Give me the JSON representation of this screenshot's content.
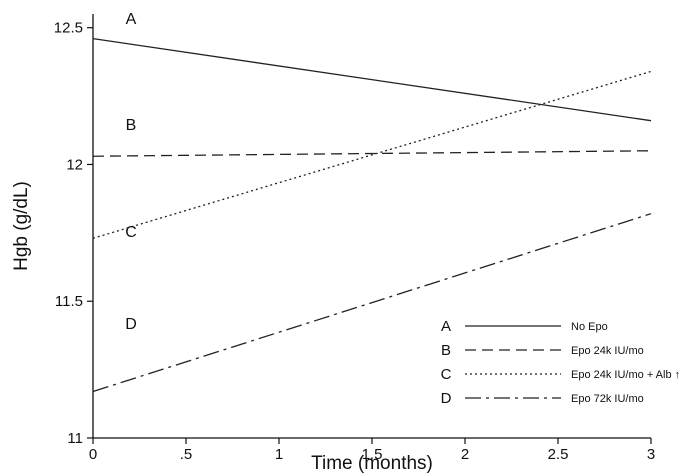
{
  "chart_data": {
    "type": "line",
    "title": "",
    "xlabel": "Time (months)",
    "ylabel": "Hgb (g/dL)",
    "xlim": [
      0,
      3
    ],
    "ylim": [
      11,
      12.55
    ],
    "xticks": [
      0,
      0.5,
      1,
      1.5,
      2,
      2.5,
      3
    ],
    "xtick_labels": [
      "0",
      ".5",
      "1",
      "1.5",
      "2",
      "2.5",
      "3"
    ],
    "yticks": [
      11,
      11.5,
      12,
      12.5
    ],
    "ytick_labels": [
      "11",
      "11.5",
      "12",
      "12.5"
    ],
    "grid": false,
    "legend_position": "bottom-right",
    "series": [
      {
        "letter": "A",
        "name": "No Epo",
        "dash": "solid",
        "x": [
          0,
          3
        ],
        "y": [
          12.46,
          12.16
        ]
      },
      {
        "letter": "B",
        "name": "Epo 24k IU/mo",
        "dash": "dashed",
        "x": [
          0,
          3
        ],
        "y": [
          12.03,
          12.05
        ]
      },
      {
        "letter": "C",
        "name": "Epo 24k IU/mo + Alb ↑",
        "dash": "dotted",
        "x": [
          0,
          3
        ],
        "y": [
          11.73,
          12.34
        ]
      },
      {
        "letter": "D",
        "name": "Epo 72k IU/mo",
        "dash": "dashdot",
        "x": [
          0,
          3
        ],
        "y": [
          11.17,
          11.82
        ]
      }
    ]
  }
}
